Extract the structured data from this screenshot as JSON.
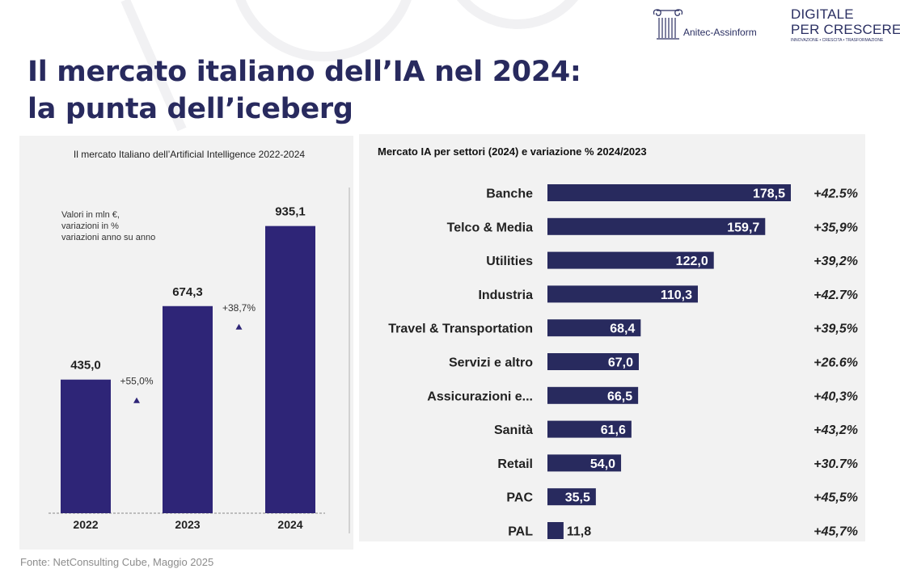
{
  "title_lines": [
    "Il mercato italiano dell’IA nel 2024:",
    "la punta dell’iceberg"
  ],
  "logos": {
    "anitec": {
      "text": "Anitec-Assinform",
      "icon": "ionic-column-icon"
    },
    "digitale": {
      "line1": "DIGITALE",
      "line2": "PER CRESCERE",
      "tagline": "INNOVAZIONE • CRESCITA • TRASFORMAZIONE"
    }
  },
  "source": "Fonte: NetConsulting Cube, Maggio 2025",
  "colors": {
    "title": "#282a5e",
    "bar_left": "#2e2577",
    "bar_right": "#282a5e",
    "panel_bg": "#f2f2f2"
  },
  "chart_data": [
    {
      "type": "bar",
      "title": "Il mercato Italiano dell’Artificial Intelligence 2022-2024",
      "note_lines": [
        "Valori in mln €,",
        "variazioni in %",
        "variazioni anno su anno"
      ],
      "categories": [
        "2022",
        "2023",
        "2024"
      ],
      "values": [
        435.0,
        674.3,
        935.1
      ],
      "value_labels": [
        "435,0",
        "674,3",
        "935,1"
      ],
      "growth": [
        {
          "label": "+55,0%",
          "marker": "triangle-up-icon"
        },
        {
          "label": "+38,7%",
          "marker": "triangle-up-icon"
        }
      ],
      "ylim": [
        0,
        1000
      ]
    },
    {
      "type": "bar",
      "orientation": "horizontal",
      "title": "Mercato IA per settori (2024) e variazione % 2024/2023",
      "categories": [
        "Banche",
        "Telco & Media",
        "Utilities",
        "Industria",
        "Travel & Transportation",
        "Servizi e altro",
        "Assicurazioni e...",
        "Sanità",
        "Retail",
        "PAC",
        "PAL"
      ],
      "values": [
        178.5,
        159.7,
        122.0,
        110.3,
        68.4,
        67.0,
        66.5,
        61.6,
        54.0,
        35.5,
        11.8
      ],
      "value_labels": [
        "178,5",
        "159,7",
        "122,0",
        "110,3",
        "68,4",
        "67,0",
        "66,5",
        "61,6",
        "54,0",
        "35,5",
        "11,8"
      ],
      "changes": [
        "+42.5%",
        "+35,9%",
        "+39,2%",
        "+42.7%",
        "+39,5%",
        "+26.6%",
        "+40,3%",
        "+43,2%",
        "+30.7%",
        "+45,5%",
        "+45,7%"
      ],
      "xlim": [
        0,
        178.5
      ]
    }
  ]
}
